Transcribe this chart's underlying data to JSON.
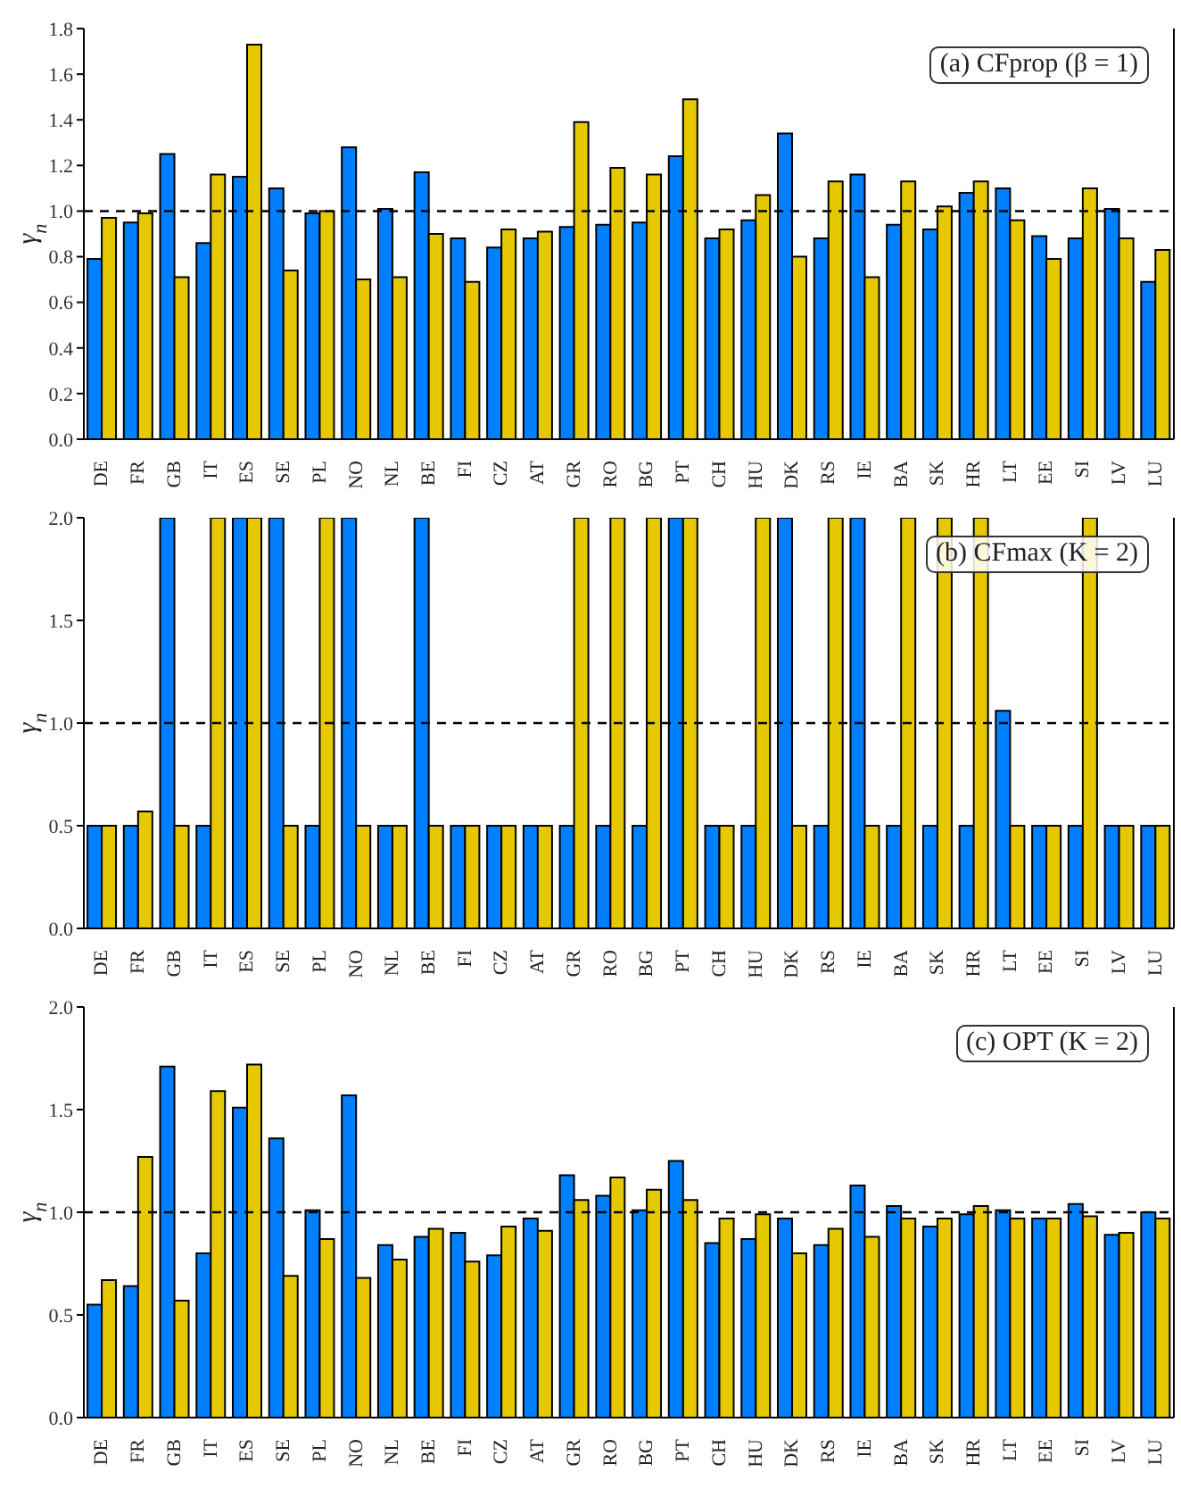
{
  "chart_data": [
    {
      "type": "bar",
      "title": "(a) CFprop (β = 1)",
      "ylabel": "γ$_{n}$",
      "categories": [
        "DE",
        "FR",
        "GB",
        "IT",
        "ES",
        "SE",
        "PL",
        "NO",
        "NL",
        "BE",
        "FI",
        "CZ",
        "AT",
        "GR",
        "RO",
        "BG",
        "PT",
        "CH",
        "HU",
        "DK",
        "RS",
        "IE",
        "BA",
        "SK",
        "HR",
        "LT",
        "EE",
        "SI",
        "LV",
        "LU"
      ],
      "series": [
        {
          "color": "#0080ff",
          "values": [
            0.79,
            0.95,
            1.25,
            0.86,
            1.15,
            1.1,
            0.99,
            1.28,
            1.01,
            1.17,
            0.88,
            0.84,
            0.88,
            0.93,
            0.94,
            0.95,
            1.24,
            0.88,
            0.96,
            1.34,
            0.88,
            1.16,
            0.94,
            0.92,
            1.08,
            1.1,
            0.89,
            0.88,
            1.01,
            0.69
          ]
        },
        {
          "color": "#e6c800",
          "values": [
            0.97,
            0.99,
            0.71,
            1.16,
            1.73,
            0.74,
            1.0,
            0.7,
            0.71,
            0.9,
            0.69,
            0.92,
            0.91,
            1.39,
            1.19,
            1.16,
            1.49,
            0.92,
            1.07,
            0.8,
            1.13,
            0.71,
            1.13,
            1.02,
            1.13,
            0.96,
            0.79,
            1.1,
            0.88,
            0.83
          ]
        }
      ],
      "ylim": [
        0,
        1.8
      ],
      "yticks": [
        {
          "value": 0,
          "label": "0.0"
        },
        0.2,
        0.4,
        0.6,
        0.8,
        {
          "value": 1,
          "label": "1.0"
        },
        1.2,
        1.4,
        1.6,
        1.8
      ],
      "ref_lines": [
        {
          "axis": "y",
          "value": 1,
          "color": "#000000",
          "line_style": "dashed"
        }
      ]
    },
    {
      "type": "bar",
      "title": "(b) CFmax (K = 2)",
      "ylabel": "γ$_{n}$",
      "categories": [
        "DE",
        "FR",
        "GB",
        "IT",
        "ES",
        "SE",
        "PL",
        "NO",
        "NL",
        "BE",
        "FI",
        "CZ",
        "AT",
        "GR",
        "RO",
        "BG",
        "PT",
        "CH",
        "HU",
        "DK",
        "RS",
        "IE",
        "BA",
        "SK",
        "HR",
        "LT",
        "EE",
        "SI",
        "LV",
        "LU"
      ],
      "series": [
        {
          "color": "#0080ff",
          "values": [
            0.5,
            0.5,
            2,
            0.5,
            2,
            2,
            0.5,
            2,
            0.5,
            2,
            0.5,
            0.5,
            0.5,
            0.5,
            0.5,
            0.5,
            2,
            0.5,
            0.5,
            2,
            0.5,
            2,
            0.5,
            0.5,
            0.5,
            1.06,
            0.5,
            0.5,
            0.5,
            0.5
          ]
        },
        {
          "color": "#e6c800",
          "values": [
            0.5,
            0.57,
            0.5,
            2,
            2,
            0.5,
            2,
            0.5,
            0.5,
            0.5,
            0.5,
            0.5,
            0.5,
            2,
            2,
            2,
            2,
            0.5,
            2,
            0.5,
            2,
            0.5,
            2,
            2,
            2,
            0.5,
            0.5,
            2,
            0.5,
            0.5
          ]
        }
      ],
      "ylim": [
        0,
        2
      ],
      "yticks": [
        {
          "value": 0,
          "label": "0.0"
        },
        0.5,
        {
          "value": 1,
          "label": "1.0"
        },
        1.5,
        {
          "value": 2,
          "label": "2.0"
        }
      ],
      "ref_lines": [
        {
          "axis": "y",
          "value": 1,
          "color": "#000000",
          "line_style": "dashed"
        }
      ]
    },
    {
      "type": "bar",
      "title": "(c) OPT (K = 2)",
      "ylabel": "γ$_{n}$",
      "categories": [
        "DE",
        "FR",
        "GB",
        "IT",
        "ES",
        "SE",
        "PL",
        "NO",
        "NL",
        "BE",
        "FI",
        "CZ",
        "AT",
        "GR",
        "RO",
        "BG",
        "PT",
        "CH",
        "HU",
        "DK",
        "RS",
        "IE",
        "BA",
        "SK",
        "HR",
        "LT",
        "EE",
        "SI",
        "LV",
        "LU"
      ],
      "series": [
        {
          "color": "#0080ff",
          "values": [
            0.55,
            0.64,
            1.71,
            0.8,
            1.51,
            1.36,
            1.01,
            1.57,
            0.84,
            0.88,
            0.9,
            0.79,
            0.97,
            1.18,
            1.08,
            1.01,
            1.25,
            0.85,
            0.87,
            0.97,
            0.84,
            1.13,
            1.03,
            0.93,
            0.99,
            1.01,
            0.97,
            1.04,
            0.89,
            1.0
          ]
        },
        {
          "color": "#e6c800",
          "values": [
            0.67,
            1.27,
            0.57,
            1.59,
            1.72,
            0.69,
            0.87,
            0.68,
            0.77,
            0.92,
            0.76,
            0.93,
            0.91,
            1.06,
            1.17,
            1.11,
            1.06,
            0.97,
            0.99,
            0.8,
            0.92,
            0.88,
            0.97,
            0.97,
            1.03,
            0.97,
            0.97,
            0.98,
            0.9,
            0.97
          ]
        }
      ],
      "ylim": [
        0,
        2
      ],
      "yticks": [
        {
          "value": 0,
          "label": "0.0"
        },
        0.5,
        {
          "value": 1,
          "label": "1.0"
        },
        1.5,
        {
          "value": 2,
          "label": "2.0"
        }
      ],
      "ref_lines": [
        {
          "axis": "y",
          "value": 1,
          "color": "#000000",
          "line_style": "dashed"
        }
      ]
    }
  ]
}
